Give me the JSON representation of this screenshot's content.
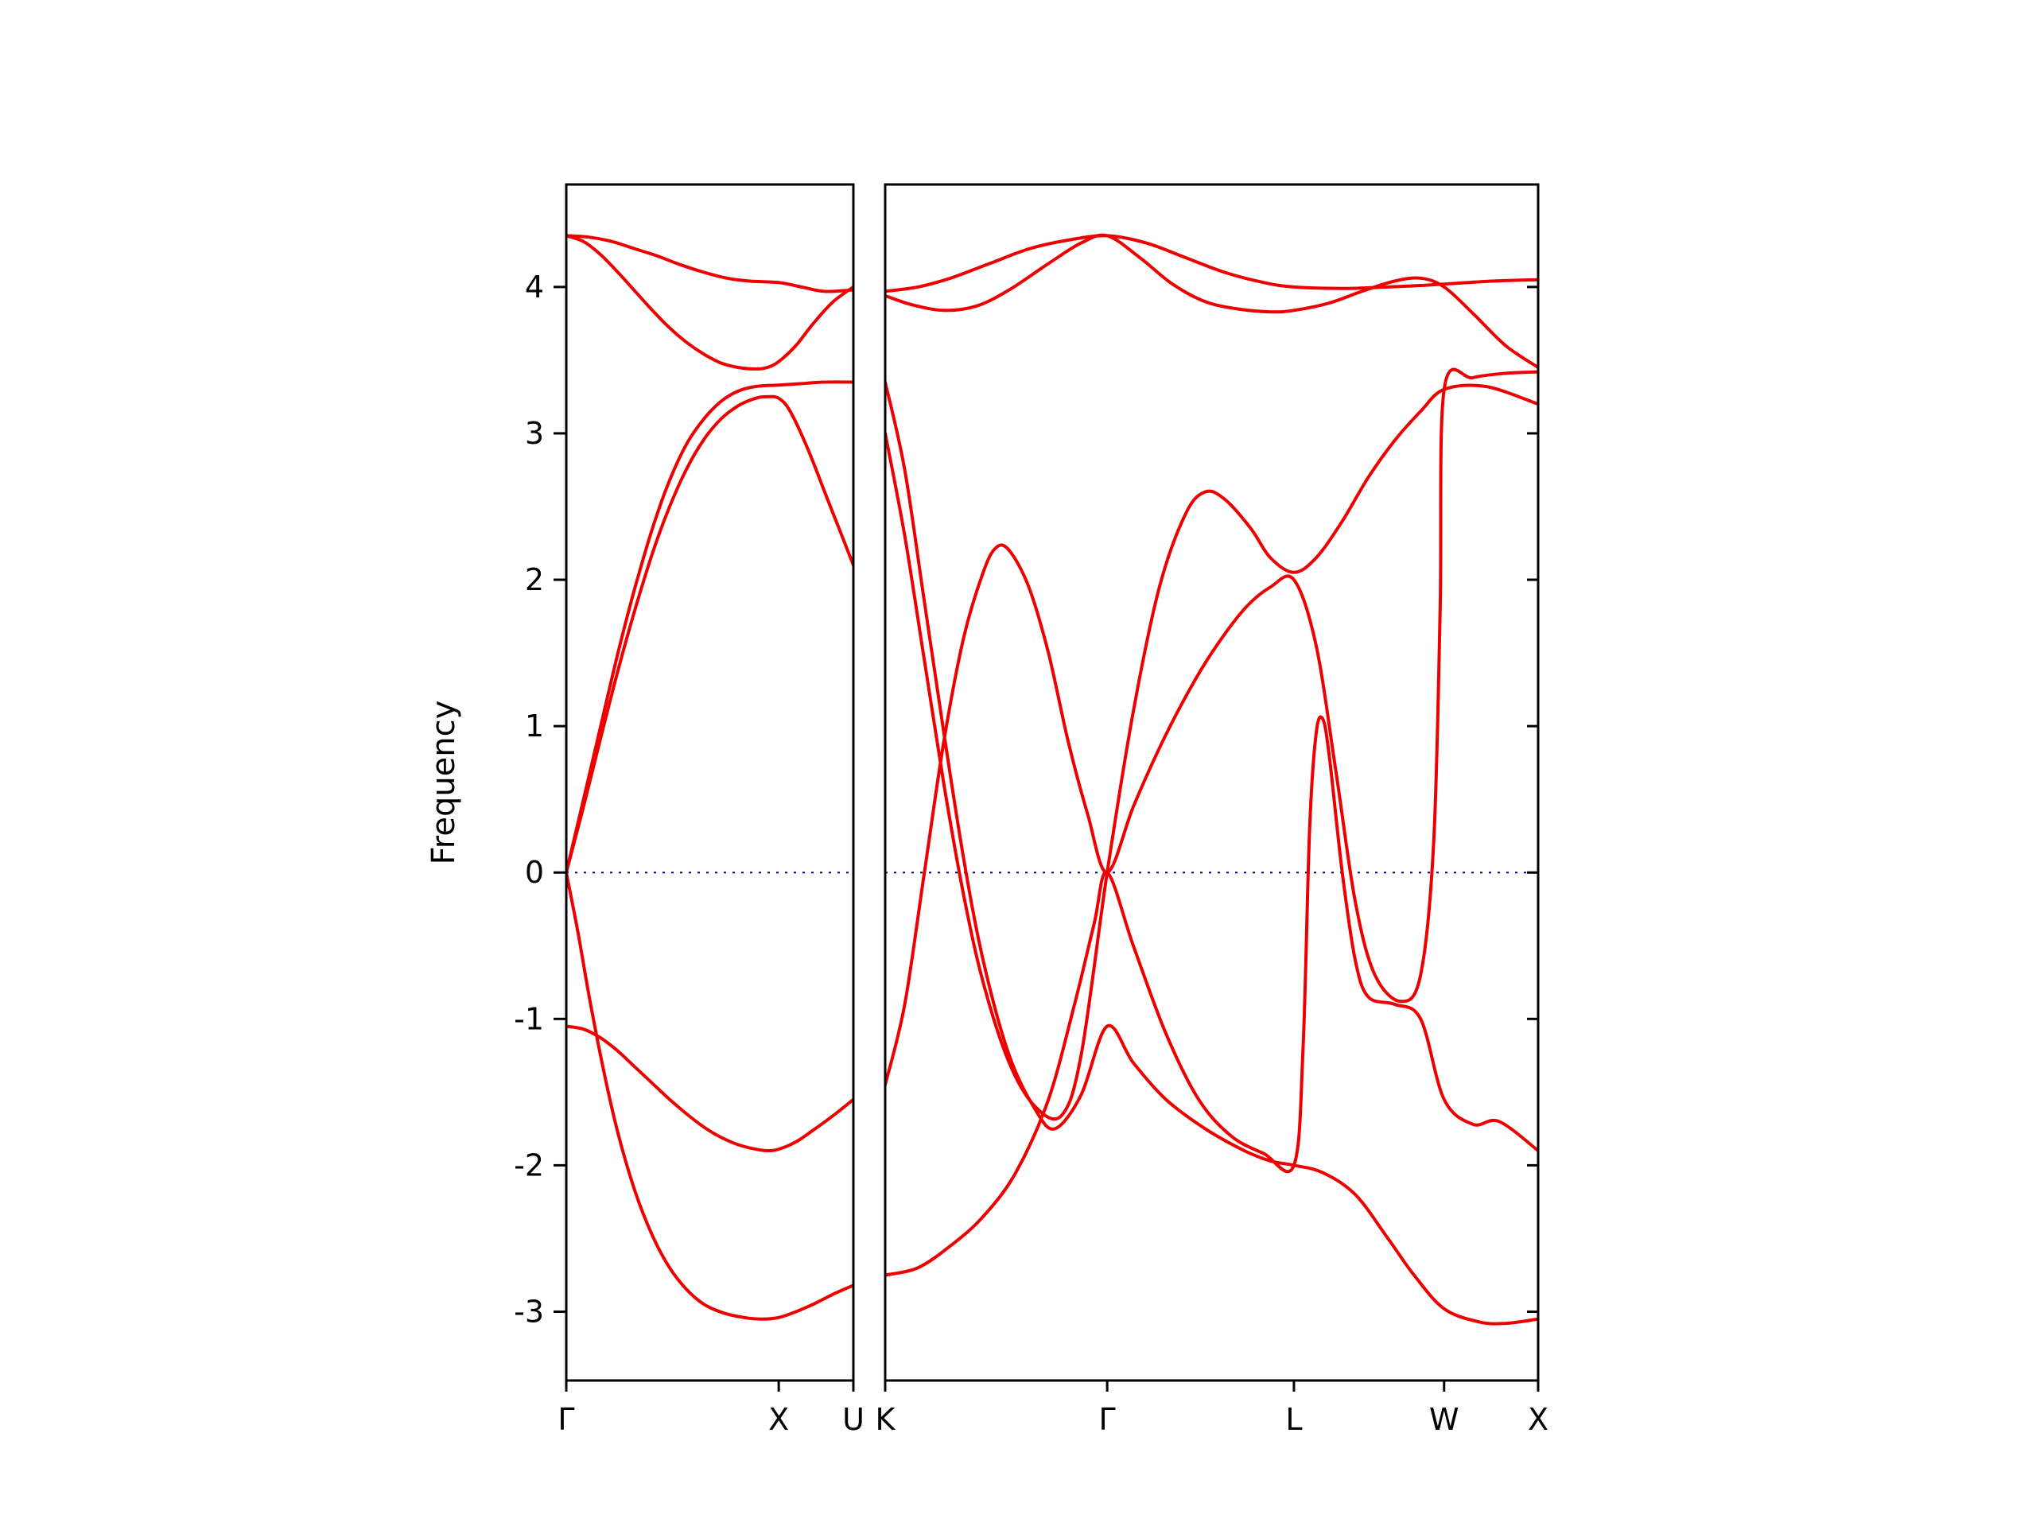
{
  "figure": {
    "background": "#ffffff",
    "title": ""
  },
  "chart_data": {
    "type": "line",
    "title": "",
    "xlabel": "",
    "ylabel": "Frequency",
    "ylim": [
      -3.47,
      4.7
    ],
    "yticks": [
      -3,
      -2,
      -1,
      0,
      1,
      2,
      3,
      4
    ],
    "grid": false,
    "legend": null,
    "band_color": "#ee0000",
    "band_linewidth": 4,
    "frame_color": "#000000",
    "zero_line": {
      "y": 0,
      "color": "#000080",
      "style": "dotted"
    },
    "panels": [
      {
        "name": "gamma-x-u",
        "width_fraction": 0.305,
        "xticks": [
          {
            "label": "Γ",
            "pos": 0.0
          },
          {
            "label": "X",
            "pos": 0.74
          },
          {
            "label": "U",
            "pos": 1.0
          }
        ],
        "bands": [
          [
            [
              0,
              4.35
            ],
            [
              0.08,
              4.34
            ],
            [
              0.16,
              4.31
            ],
            [
              0.24,
              4.26
            ],
            [
              0.32,
              4.21
            ],
            [
              0.4,
              4.15
            ],
            [
              0.48,
              4.1
            ],
            [
              0.56,
              4.06
            ],
            [
              0.64,
              4.04
            ],
            [
              0.74,
              4.03
            ],
            [
              0.82,
              4.0
            ],
            [
              0.9,
              3.97
            ],
            [
              1,
              3.98
            ]
          ],
          [
            [
              0,
              4.35
            ],
            [
              0.06,
              4.31
            ],
            [
              0.12,
              4.22
            ],
            [
              0.18,
              4.1
            ],
            [
              0.24,
              3.97
            ],
            [
              0.3,
              3.84
            ],
            [
              0.36,
              3.72
            ],
            [
              0.42,
              3.62
            ],
            [
              0.48,
              3.54
            ],
            [
              0.54,
              3.48
            ],
            [
              0.6,
              3.45
            ],
            [
              0.66,
              3.44
            ],
            [
              0.7,
              3.45
            ],
            [
              0.74,
              3.49
            ],
            [
              0.8,
              3.6
            ],
            [
              0.86,
              3.75
            ],
            [
              0.93,
              3.9
            ],
            [
              1,
              4.0
            ]
          ],
          [
            [
              0,
              0
            ],
            [
              0.06,
              0.5
            ],
            [
              0.12,
              1.0
            ],
            [
              0.18,
              1.5
            ],
            [
              0.24,
              1.95
            ],
            [
              0.3,
              2.35
            ],
            [
              0.36,
              2.68
            ],
            [
              0.42,
              2.93
            ],
            [
              0.48,
              3.1
            ],
            [
              0.54,
              3.22
            ],
            [
              0.6,
              3.29
            ],
            [
              0.66,
              3.32
            ],
            [
              0.74,
              3.33
            ],
            [
              0.82,
              3.34
            ],
            [
              0.9,
              3.35
            ],
            [
              1,
              3.35
            ]
          ],
          [
            [
              0,
              0
            ],
            [
              0.06,
              0.45
            ],
            [
              0.12,
              0.92
            ],
            [
              0.18,
              1.38
            ],
            [
              0.24,
              1.8
            ],
            [
              0.3,
              2.18
            ],
            [
              0.36,
              2.5
            ],
            [
              0.42,
              2.76
            ],
            [
              0.48,
              2.96
            ],
            [
              0.54,
              3.1
            ],
            [
              0.6,
              3.19
            ],
            [
              0.66,
              3.24
            ],
            [
              0.7,
              3.25
            ],
            [
              0.74,
              3.24
            ],
            [
              0.78,
              3.15
            ],
            [
              0.84,
              2.9
            ],
            [
              0.9,
              2.6
            ],
            [
              0.95,
              2.35
            ],
            [
              1,
              2.1
            ]
          ],
          [
            [
              0,
              0
            ],
            [
              0.04,
              -0.4
            ],
            [
              0.08,
              -0.85
            ],
            [
              0.13,
              -1.35
            ],
            [
              0.18,
              -1.78
            ],
            [
              0.24,
              -2.18
            ],
            [
              0.3,
              -2.48
            ],
            [
              0.36,
              -2.7
            ],
            [
              0.42,
              -2.85
            ],
            [
              0.48,
              -2.95
            ],
            [
              0.55,
              -3.01
            ],
            [
              0.62,
              -3.04
            ],
            [
              0.68,
              -3.05
            ],
            [
              0.74,
              -3.04
            ],
            [
              0.8,
              -3.0
            ],
            [
              0.87,
              -2.94
            ],
            [
              0.93,
              -2.88
            ],
            [
              1,
              -2.82
            ]
          ],
          [
            [
              0,
              -1.05
            ],
            [
              0.06,
              -1.07
            ],
            [
              0.12,
              -1.13
            ],
            [
              0.18,
              -1.22
            ],
            [
              0.24,
              -1.33
            ],
            [
              0.3,
              -1.44
            ],
            [
              0.36,
              -1.55
            ],
            [
              0.42,
              -1.65
            ],
            [
              0.48,
              -1.74
            ],
            [
              0.54,
              -1.81
            ],
            [
              0.6,
              -1.86
            ],
            [
              0.66,
              -1.89
            ],
            [
              0.7,
              -1.9
            ],
            [
              0.74,
              -1.89
            ],
            [
              0.8,
              -1.84
            ],
            [
              0.86,
              -1.76
            ],
            [
              0.93,
              -1.66
            ],
            [
              1,
              -1.55
            ]
          ]
        ]
      },
      {
        "name": "k-gamma-l-w-x",
        "width_fraction": 0.695,
        "xticks": [
          {
            "label": "K",
            "pos": 0.0
          },
          {
            "label": "Γ",
            "pos": 0.34
          },
          {
            "label": "L",
            "pos": 0.626
          },
          {
            "label": "W",
            "pos": 0.856
          },
          {
            "label": "X",
            "pos": 1.0
          }
        ],
        "bands": [
          [
            [
              0,
              3.97
            ],
            [
              0.05,
              4.0
            ],
            [
              0.1,
              4.06
            ],
            [
              0.16,
              4.16
            ],
            [
              0.22,
              4.26
            ],
            [
              0.28,
              4.32
            ],
            [
              0.34,
              4.35
            ],
            [
              0.4,
              4.3
            ],
            [
              0.46,
              4.2
            ],
            [
              0.52,
              4.1
            ],
            [
              0.58,
              4.03
            ],
            [
              0.626,
              4.0
            ],
            [
              0.7,
              3.99
            ],
            [
              0.77,
              4.0
            ],
            [
              0.82,
              4.01
            ],
            [
              0.856,
              4.02
            ],
            [
              0.93,
              4.04
            ],
            [
              1,
              4.05
            ]
          ],
          [
            [
              0,
              3.94
            ],
            [
              0.04,
              3.88
            ],
            [
              0.09,
              3.84
            ],
            [
              0.14,
              3.87
            ],
            [
              0.19,
              3.98
            ],
            [
              0.25,
              4.16
            ],
            [
              0.3,
              4.3
            ],
            [
              0.34,
              4.35
            ],
            [
              0.39,
              4.2
            ],
            [
              0.44,
              4.02
            ],
            [
              0.49,
              3.9
            ],
            [
              0.54,
              3.85
            ],
            [
              0.59,
              3.83
            ],
            [
              0.626,
              3.84
            ],
            [
              0.68,
              3.89
            ],
            [
              0.73,
              3.97
            ],
            [
              0.78,
              4.04
            ],
            [
              0.82,
              4.06
            ],
            [
              0.856,
              4.0
            ],
            [
              0.9,
              3.82
            ],
            [
              0.95,
              3.6
            ],
            [
              1,
              3.45
            ]
          ],
          [
            [
              0,
              3.35
            ],
            [
              0.03,
              2.75
            ],
            [
              0.06,
              1.85
            ],
            [
              0.09,
              0.95
            ],
            [
              0.12,
              0.1
            ],
            [
              0.15,
              -0.6
            ],
            [
              0.19,
              -1.25
            ],
            [
              0.23,
              -1.62
            ],
            [
              0.26,
              -1.75
            ],
            [
              0.3,
              -1.52
            ],
            [
              0.34,
              -1.05
            ],
            [
              0.38,
              -1.3
            ],
            [
              0.43,
              -1.55
            ],
            [
              0.49,
              -1.75
            ],
            [
              0.55,
              -1.9
            ],
            [
              0.59,
              -1.97
            ],
            [
              0.626,
              -2.0
            ],
            [
              0.67,
              -2.05
            ],
            [
              0.72,
              -2.2
            ],
            [
              0.77,
              -2.5
            ],
            [
              0.81,
              -2.75
            ],
            [
              0.856,
              -2.98
            ],
            [
              0.91,
              -3.07
            ],
            [
              0.95,
              -3.08
            ],
            [
              1,
              -3.05
            ]
          ],
          [
            [
              0,
              3.0
            ],
            [
              0.03,
              2.3
            ],
            [
              0.06,
              1.45
            ],
            [
              0.09,
              0.6
            ],
            [
              0.12,
              -0.15
            ],
            [
              0.15,
              -0.75
            ],
            [
              0.19,
              -1.3
            ],
            [
              0.23,
              -1.6
            ],
            [
              0.27,
              -1.66
            ],
            [
              0.3,
              -1.25
            ],
            [
              0.34,
              0
            ],
            [
              0.38,
              1.1
            ],
            [
              0.42,
              1.95
            ],
            [
              0.46,
              2.45
            ],
            [
              0.49,
              2.6
            ],
            [
              0.52,
              2.55
            ],
            [
              0.56,
              2.35
            ],
            [
              0.59,
              2.15
            ],
            [
              0.626,
              2.05
            ],
            [
              0.66,
              2.15
            ],
            [
              0.7,
              2.4
            ],
            [
              0.74,
              2.7
            ],
            [
              0.78,
              2.95
            ],
            [
              0.82,
              3.15
            ],
            [
              0.856,
              3.3
            ],
            [
              0.92,
              3.32
            ],
            [
              1,
              3.2
            ]
          ],
          [
            [
              0,
              -1.45
            ],
            [
              0.03,
              -0.9
            ],
            [
              0.06,
              0.0
            ],
            [
              0.09,
              0.9
            ],
            [
              0.12,
              1.6
            ],
            [
              0.15,
              2.05
            ],
            [
              0.17,
              2.22
            ],
            [
              0.19,
              2.2
            ],
            [
              0.22,
              1.95
            ],
            [
              0.25,
              1.5
            ],
            [
              0.28,
              0.9
            ],
            [
              0.31,
              0.4
            ],
            [
              0.34,
              0
            ],
            [
              0.38,
              0.45
            ],
            [
              0.42,
              0.85
            ],
            [
              0.46,
              1.2
            ],
            [
              0.5,
              1.5
            ],
            [
              0.55,
              1.8
            ],
            [
              0.59,
              1.95
            ],
            [
              0.626,
              2.0
            ],
            [
              0.66,
              1.55
            ],
            [
              0.69,
              0.7
            ],
            [
              0.72,
              -0.2
            ],
            [
              0.75,
              -0.7
            ],
            [
              0.79,
              -0.88
            ],
            [
              0.82,
              -0.7
            ],
            [
              0.84,
              0.2
            ],
            [
              0.85,
              1.8
            ],
            [
              0.856,
              3.3
            ],
            [
              0.9,
              3.38
            ],
            [
              0.95,
              3.41
            ],
            [
              1,
              3.42
            ]
          ],
          [
            [
              0,
              -2.75
            ],
            [
              0.05,
              -2.7
            ],
            [
              0.1,
              -2.55
            ],
            [
              0.15,
              -2.35
            ],
            [
              0.2,
              -2.05
            ],
            [
              0.25,
              -1.55
            ],
            [
              0.29,
              -0.9
            ],
            [
              0.32,
              -0.35
            ],
            [
              0.34,
              0
            ],
            [
              0.38,
              -0.5
            ],
            [
              0.43,
              -1.1
            ],
            [
              0.48,
              -1.55
            ],
            [
              0.53,
              -1.8
            ],
            [
              0.58,
              -1.92
            ],
            [
              0.626,
              -2.0
            ],
            [
              0.64,
              -1.2
            ],
            [
              0.65,
              0.3
            ],
            [
              0.66,
              0.95
            ],
            [
              0.67,
              1.05
            ],
            [
              0.68,
              0.8
            ],
            [
              0.7,
              0.0
            ],
            [
              0.72,
              -0.6
            ],
            [
              0.74,
              -0.85
            ],
            [
              0.78,
              -0.9
            ],
            [
              0.82,
              -1.0
            ],
            [
              0.856,
              -1.55
            ],
            [
              0.9,
              -1.72
            ],
            [
              0.94,
              -1.7
            ],
            [
              1,
              -1.9
            ]
          ]
        ]
      }
    ]
  }
}
